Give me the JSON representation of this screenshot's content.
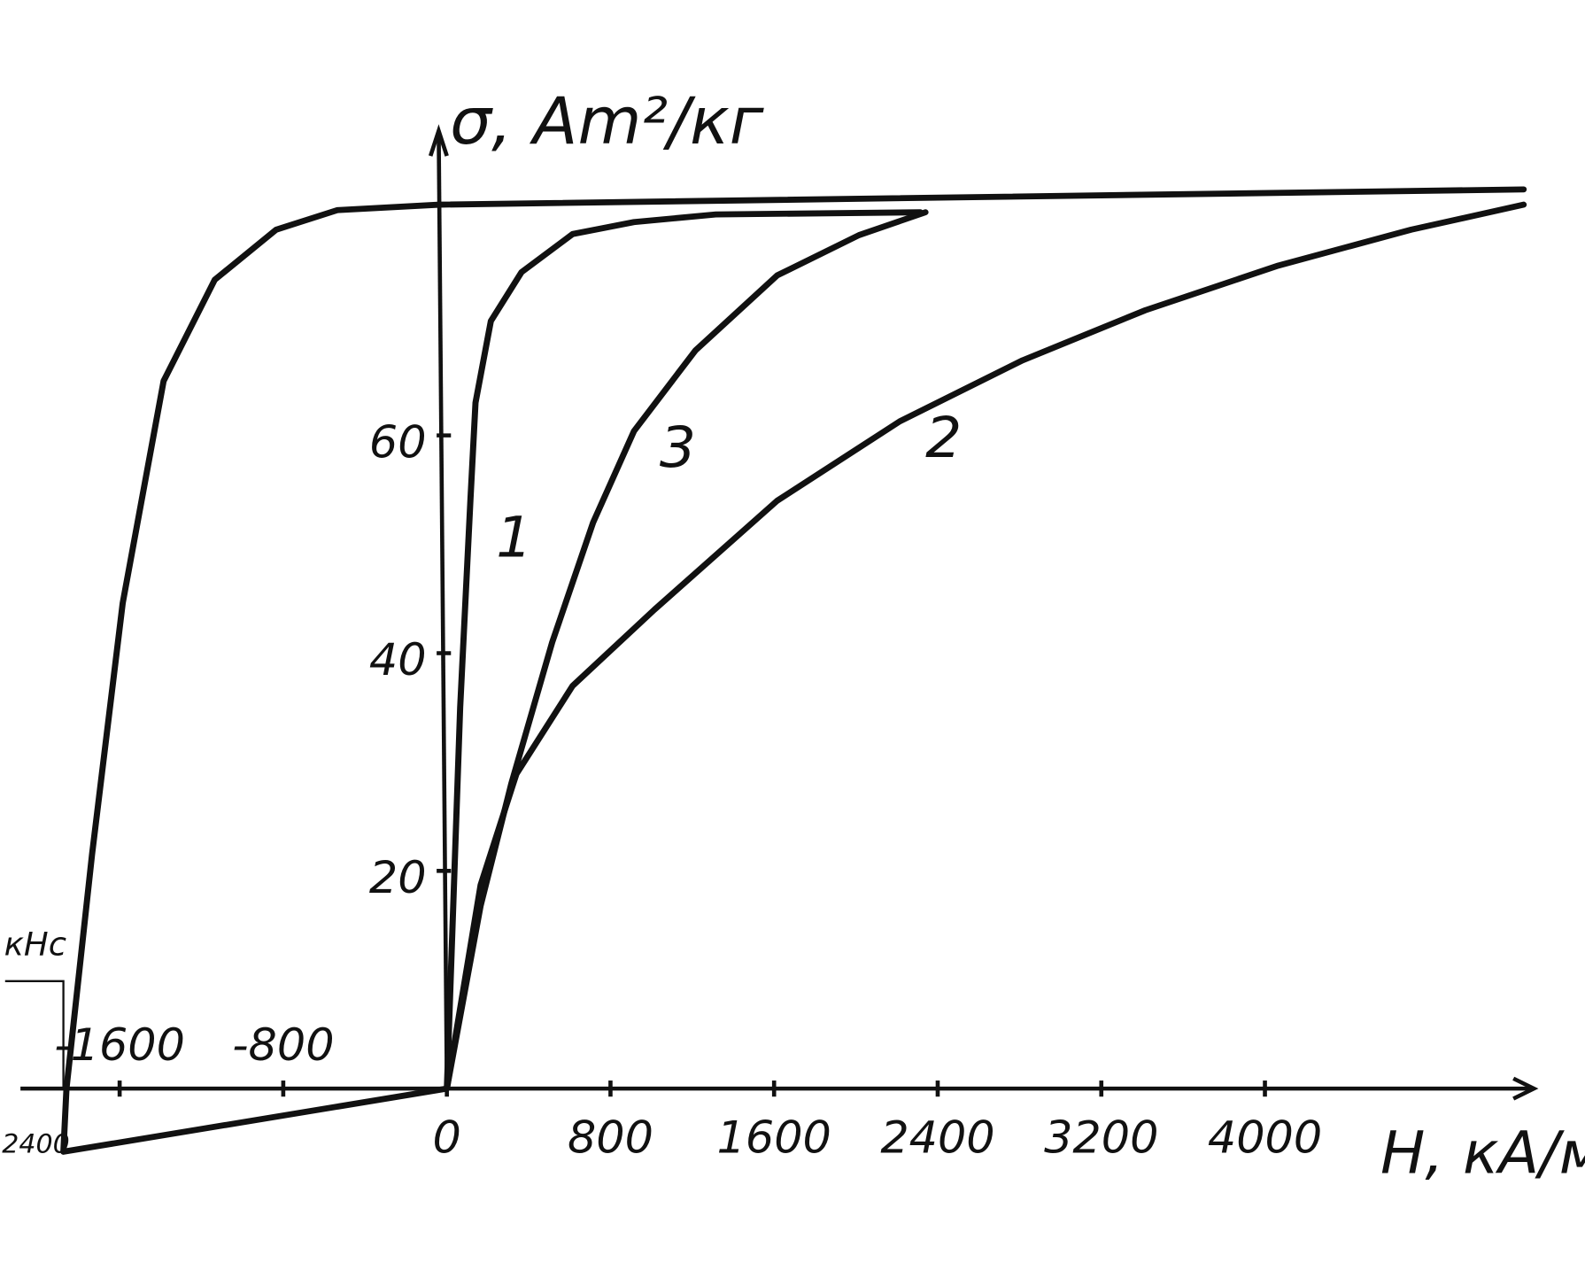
{
  "chart_data": {
    "type": "line",
    "y_label": "σ, Am²/кг",
    "x_label": "H, кA/м",
    "xlim": [
      -2185,
      5565
    ],
    "ylim": [
      -17.4,
      100
    ],
    "xticks": [
      -1600,
      -800,
      0,
      800,
      1600,
      2400,
      3200,
      4000
    ],
    "yticks": [
      20,
      40,
      60
    ],
    "annotations": [
      "2400",
      "кHc"
    ],
    "series": [
      {
        "name": "1",
        "color": "#111111",
        "x": [
          0,
          65,
          115,
          140,
          215,
          365,
          615,
          915,
          1315,
          2315
        ],
        "values": [
          0,
          35,
          54,
          63,
          70.5,
          75,
          78.5,
          79.6,
          80.3,
          80.5
        ]
      },
      {
        "name": "3",
        "color": "#111111",
        "x": [
          0,
          165,
          315,
          515,
          715,
          915,
          1215,
          1615,
          2015,
          2340
        ],
        "values": [
          0,
          16.8,
          28,
          41,
          52,
          60.4,
          67.8,
          74.7,
          78.4,
          80.5
        ]
      },
      {
        "name": "2",
        "color": "#111111",
        "x": [
          0,
          165,
          340,
          615,
          1015,
          1615,
          2215,
          2815,
          3415,
          4065,
          4715,
          5265
        ],
        "values": [
          0,
          18.7,
          28.9,
          37,
          44,
          54,
          61.3,
          66.9,
          71.5,
          75.6,
          78.9,
          81.2
        ]
      },
      {
        "color": "#111111",
        "x": [
          5265,
          -35,
          -535,
          -835,
          -1135,
          -1385,
          -1585,
          -1735,
          -1860,
          -1875,
          0
        ],
        "values": [
          82.6,
          81.2,
          80.7,
          78.9,
          74.3,
          65,
          44.6,
          21.5,
          0,
          -5.8,
          0
        ]
      }
    ]
  }
}
